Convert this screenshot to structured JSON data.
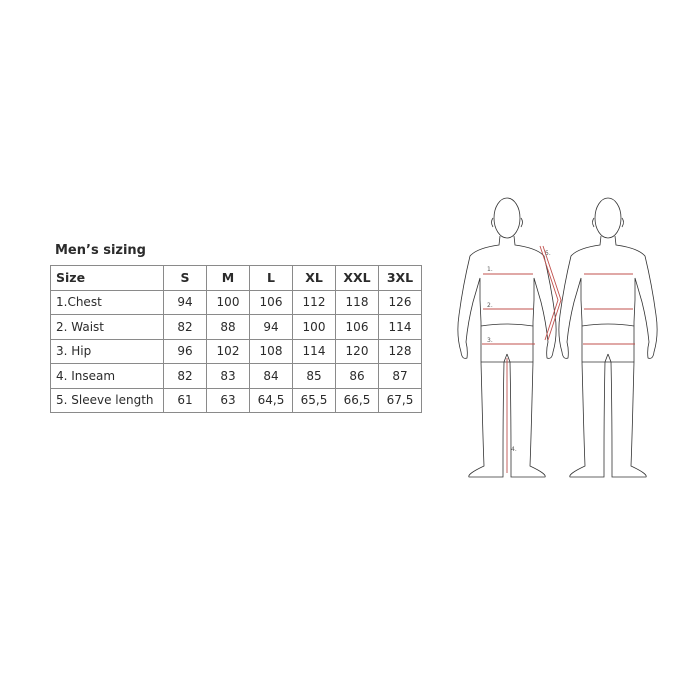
{
  "title": "Men’s sizing",
  "table": {
    "header": [
      "Size",
      "S",
      "M",
      "L",
      "XL",
      "XXL",
      "3XL"
    ],
    "rows": [
      [
        "1.Chest",
        "94",
        "100",
        "106",
        "112",
        "118",
        "126"
      ],
      [
        "2. Waist",
        "82",
        "88",
        "94",
        "100",
        "106",
        "114"
      ],
      [
        "3. Hip",
        "96",
        "102",
        "108",
        "114",
        "120",
        "128"
      ],
      [
        "4. Inseam",
        "82",
        "83",
        "84",
        "85",
        "86",
        "87"
      ],
      [
        "5. Sleeve length",
        "61",
        "63",
        "64,5",
        "65,5",
        "66,5",
        "67,5"
      ]
    ]
  },
  "diagram": {
    "labels": [
      "1.",
      "2.",
      "3.",
      "4.",
      "5."
    ],
    "line_color": "#c0504d",
    "outline_color": "#333333"
  }
}
